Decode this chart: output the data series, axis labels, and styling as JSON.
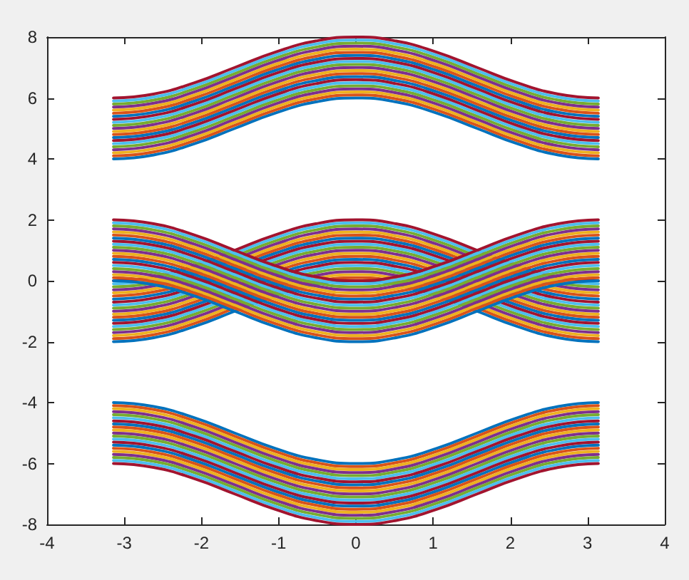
{
  "chart_data": {
    "type": "line",
    "grid": false,
    "xlim": [
      -4,
      4
    ],
    "xticks": [
      -4,
      -3,
      -2,
      -1,
      0,
      1,
      2,
      3,
      4
    ],
    "ylim": [
      -8,
      8
    ],
    "yticks": [
      -8,
      -6,
      -4,
      -2,
      0,
      2,
      4,
      6,
      8
    ],
    "x": [
      -3.14,
      -2.62,
      -2.09,
      -1.57,
      -1.05,
      -0.52,
      0,
      0.52,
      1.05,
      1.57,
      2.09,
      2.62,
      3.14
    ],
    "series": [
      {
        "color": "#0072bd",
        "values": [
          4,
          4.13,
          4.5,
          5,
          5.5,
          5.87,
          6,
          5.87,
          5.5,
          5,
          4.5,
          4.13,
          4
        ]
      },
      {
        "color": "#d95319",
        "values": [
          4.1,
          4.23,
          4.6,
          5.1,
          5.6,
          5.97,
          6.1,
          5.97,
          5.6,
          5.1,
          4.6,
          4.23,
          4.1
        ]
      },
      {
        "color": "#edb120",
        "values": [
          4.2,
          4.33,
          4.7,
          5.2,
          5.7,
          6.07,
          6.2,
          6.07,
          5.7,
          5.2,
          4.7,
          4.33,
          4.2
        ]
      },
      {
        "color": "#7e2f8e",
        "values": [
          4.3,
          4.43,
          4.8,
          5.3,
          5.8,
          6.17,
          6.3,
          6.17,
          5.8,
          5.3,
          4.8,
          4.43,
          4.3
        ]
      },
      {
        "color": "#77ac30",
        "values": [
          4.4,
          4.53,
          4.9,
          5.4,
          5.9,
          6.27,
          6.4,
          6.27,
          5.9,
          5.4,
          4.9,
          4.53,
          4.4
        ]
      },
      {
        "color": "#4dbeee",
        "values": [
          4.5,
          4.63,
          5,
          5.5,
          6,
          6.37,
          6.5,
          6.37,
          6,
          5.5,
          5,
          4.63,
          4.5
        ]
      },
      {
        "color": "#a2142f",
        "values": [
          4.6,
          4.73,
          5.1,
          5.6,
          6.1,
          6.47,
          6.6,
          6.47,
          6.1,
          5.6,
          5.1,
          4.73,
          4.6
        ]
      },
      {
        "color": "#0072bd",
        "values": [
          4.7,
          4.83,
          5.2,
          5.7,
          6.2,
          6.57,
          6.7,
          6.57,
          6.2,
          5.7,
          5.2,
          4.83,
          4.7
        ]
      },
      {
        "color": "#d95319",
        "values": [
          4.8,
          4.93,
          5.3,
          5.8,
          6.3,
          6.67,
          6.8,
          6.67,
          6.3,
          5.8,
          5.3,
          4.93,
          4.8
        ]
      },
      {
        "color": "#edb120",
        "values": [
          4.9,
          5.03,
          5.4,
          5.9,
          6.4,
          6.77,
          6.9,
          6.77,
          6.4,
          5.9,
          5.4,
          5.03,
          4.9
        ]
      },
      {
        "color": "#7e2f8e",
        "values": [
          5,
          5.13,
          5.5,
          6,
          6.5,
          6.87,
          7,
          6.87,
          6.5,
          6,
          5.5,
          5.13,
          5
        ]
      },
      {
        "color": "#77ac30",
        "values": [
          5.1,
          5.23,
          5.6,
          6.1,
          6.6,
          6.97,
          7.1,
          6.97,
          6.6,
          6.1,
          5.6,
          5.23,
          5.1
        ]
      },
      {
        "color": "#4dbeee",
        "values": [
          5.2,
          5.33,
          5.7,
          6.2,
          6.7,
          7.07,
          7.2,
          7.07,
          6.7,
          6.2,
          5.7,
          5.33,
          5.2
        ]
      },
      {
        "color": "#a2142f",
        "values": [
          5.3,
          5.43,
          5.8,
          6.3,
          6.8,
          7.17,
          7.3,
          7.17,
          6.8,
          6.3,
          5.8,
          5.43,
          5.3
        ]
      },
      {
        "color": "#0072bd",
        "values": [
          5.4,
          5.53,
          5.9,
          6.4,
          6.9,
          7.27,
          7.4,
          7.27,
          6.9,
          6.4,
          5.9,
          5.53,
          5.4
        ]
      },
      {
        "color": "#d95319",
        "values": [
          5.5,
          5.63,
          6,
          6.5,
          7,
          7.37,
          7.5,
          7.37,
          7,
          6.5,
          6,
          5.63,
          5.5
        ]
      },
      {
        "color": "#edb120",
        "values": [
          5.6,
          5.73,
          6.1,
          6.6,
          7.1,
          7.47,
          7.6,
          7.47,
          7.1,
          6.6,
          6.1,
          5.73,
          5.6
        ]
      },
      {
        "color": "#7e2f8e",
        "values": [
          5.7,
          5.83,
          6.2,
          6.7,
          7.2,
          7.57,
          7.7,
          7.57,
          7.2,
          6.7,
          6.2,
          5.83,
          5.7
        ]
      },
      {
        "color": "#77ac30",
        "values": [
          5.8,
          5.93,
          6.3,
          6.8,
          7.3,
          7.67,
          7.8,
          7.67,
          7.3,
          6.8,
          6.3,
          5.93,
          5.8
        ]
      },
      {
        "color": "#4dbeee",
        "values": [
          5.9,
          6.03,
          6.4,
          6.9,
          7.4,
          7.77,
          7.9,
          7.77,
          7.4,
          6.9,
          6.4,
          6.03,
          5.9
        ]
      },
      {
        "color": "#a2142f",
        "values": [
          6,
          6.13,
          6.5,
          7,
          7.5,
          7.87,
          8,
          7.87,
          7.5,
          7,
          6.5,
          6.13,
          6
        ]
      },
      {
        "color": "#0072bd",
        "values": [
          -2,
          -1.87,
          -1.5,
          -1,
          -0.5,
          -0.13,
          0,
          -0.13,
          -0.5,
          -1,
          -1.5,
          -1.87,
          -2
        ]
      },
      {
        "color": "#d95319",
        "values": [
          -1.9,
          -1.77,
          -1.4,
          -0.9,
          -0.4,
          -0.03,
          0.1,
          -0.03,
          -0.4,
          -0.9,
          -1.4,
          -1.77,
          -1.9
        ]
      },
      {
        "color": "#edb120",
        "values": [
          -1.8,
          -1.67,
          -1.3,
          -0.8,
          -0.3,
          0.07,
          0.2,
          0.07,
          -0.3,
          -0.8,
          -1.3,
          -1.67,
          -1.8
        ]
      },
      {
        "color": "#7e2f8e",
        "values": [
          -1.7,
          -1.57,
          -1.2,
          -0.7,
          -0.2,
          0.17,
          0.3,
          0.17,
          -0.2,
          -0.7,
          -1.2,
          -1.57,
          -1.7
        ]
      },
      {
        "color": "#77ac30",
        "values": [
          -1.6,
          -1.47,
          -1.1,
          -0.6,
          -0.1,
          0.27,
          0.4,
          0.27,
          -0.1,
          -0.6,
          -1.1,
          -1.47,
          -1.6
        ]
      },
      {
        "color": "#4dbeee",
        "values": [
          -1.5,
          -1.37,
          -1,
          -0.5,
          0,
          0.37,
          0.5,
          0.37,
          0,
          -0.5,
          -1,
          -1.37,
          -1.5
        ]
      },
      {
        "color": "#a2142f",
        "values": [
          -1.4,
          -1.27,
          -0.9,
          -0.4,
          0.1,
          0.47,
          0.6,
          0.47,
          0.1,
          -0.4,
          -0.9,
          -1.27,
          -1.4
        ]
      },
      {
        "color": "#0072bd",
        "values": [
          -1.3,
          -1.17,
          -0.8,
          -0.3,
          0.2,
          0.57,
          0.7,
          0.57,
          0.2,
          -0.3,
          -0.8,
          -1.17,
          -1.3
        ]
      },
      {
        "color": "#d95319",
        "values": [
          -1.2,
          -1.07,
          -0.7,
          -0.2,
          0.3,
          0.67,
          0.8,
          0.67,
          0.3,
          -0.2,
          -0.7,
          -1.07,
          -1.2
        ]
      },
      {
        "color": "#edb120",
        "values": [
          -1.1,
          -0.97,
          -0.6,
          -0.1,
          0.4,
          0.77,
          0.9,
          0.77,
          0.4,
          -0.1,
          -0.6,
          -0.97,
          -1.1
        ]
      },
      {
        "color": "#7e2f8e",
        "values": [
          -1,
          -0.87,
          -0.5,
          0,
          0.5,
          0.87,
          1,
          0.87,
          0.5,
          0,
          -0.5,
          -0.87,
          -1
        ]
      },
      {
        "color": "#77ac30",
        "values": [
          -0.9,
          -0.77,
          -0.4,
          0.1,
          0.6,
          0.97,
          1.1,
          0.97,
          0.6,
          0.1,
          -0.4,
          -0.77,
          -0.9
        ]
      },
      {
        "color": "#4dbeee",
        "values": [
          -0.8,
          -0.67,
          -0.3,
          0.2,
          0.7,
          1.07,
          1.2,
          1.07,
          0.7,
          0.2,
          -0.3,
          -0.67,
          -0.8
        ]
      },
      {
        "color": "#a2142f",
        "values": [
          -0.7,
          -0.57,
          -0.2,
          0.3,
          0.8,
          1.17,
          1.3,
          1.17,
          0.8,
          0.3,
          -0.2,
          -0.57,
          -0.7
        ]
      },
      {
        "color": "#0072bd",
        "values": [
          -0.6,
          -0.47,
          -0.1,
          0.4,
          0.9,
          1.27,
          1.4,
          1.27,
          0.9,
          0.4,
          -0.1,
          -0.47,
          -0.6
        ]
      },
      {
        "color": "#d95319",
        "values": [
          -0.5,
          -0.37,
          0,
          0.5,
          1,
          1.37,
          1.5,
          1.37,
          1,
          0.5,
          0,
          -0.37,
          -0.5
        ]
      },
      {
        "color": "#edb120",
        "values": [
          -0.4,
          -0.27,
          0.1,
          0.6,
          1.1,
          1.47,
          1.6,
          1.47,
          1.1,
          0.6,
          0.1,
          -0.27,
          -0.4
        ]
      },
      {
        "color": "#7e2f8e",
        "values": [
          -0.3,
          -0.17,
          0.2,
          0.7,
          1.2,
          1.57,
          1.7,
          1.57,
          1.2,
          0.7,
          0.2,
          -0.17,
          -0.3
        ]
      },
      {
        "color": "#77ac30",
        "values": [
          -0.2,
          -0.07,
          0.3,
          0.8,
          1.3,
          1.67,
          1.8,
          1.67,
          1.3,
          0.8,
          0.3,
          -0.07,
          -0.2
        ]
      },
      {
        "color": "#4dbeee",
        "values": [
          -0.1,
          0.03,
          0.4,
          0.9,
          1.4,
          1.77,
          1.9,
          1.77,
          1.4,
          0.9,
          0.4,
          0.03,
          -0.1
        ]
      },
      {
        "color": "#a2142f",
        "values": [
          0,
          0.13,
          0.5,
          1,
          1.5,
          1.87,
          2,
          1.87,
          1.5,
          1,
          0.5,
          0.13,
          0
        ]
      },
      {
        "color": "#0072bd",
        "values": [
          0,
          -0.13,
          -0.5,
          -1,
          -1.5,
          -1.87,
          -2,
          -1.87,
          -1.5,
          -1,
          -0.5,
          -0.13,
          0
        ]
      },
      {
        "color": "#d95319",
        "values": [
          0.1,
          -0.03,
          -0.4,
          -0.9,
          -1.4,
          -1.77,
          -1.9,
          -1.77,
          -1.4,
          -0.9,
          -0.4,
          -0.03,
          0.1
        ]
      },
      {
        "color": "#edb120",
        "values": [
          0.2,
          0.07,
          -0.3,
          -0.8,
          -1.3,
          -1.67,
          -1.8,
          -1.67,
          -1.3,
          -0.8,
          -0.3,
          0.07,
          0.2
        ]
      },
      {
        "color": "#7e2f8e",
        "values": [
          0.3,
          0.17,
          -0.2,
          -0.7,
          -1.2,
          -1.57,
          -1.7,
          -1.57,
          -1.2,
          -0.7,
          -0.2,
          0.17,
          0.3
        ]
      },
      {
        "color": "#77ac30",
        "values": [
          0.4,
          0.27,
          -0.1,
          -0.6,
          -1.1,
          -1.47,
          -1.6,
          -1.47,
          -1.1,
          -0.6,
          -0.1,
          0.27,
          0.4
        ]
      },
      {
        "color": "#4dbeee",
        "values": [
          0.5,
          0.37,
          0,
          -0.5,
          -1,
          -1.37,
          -1.5,
          -1.37,
          -1,
          -0.5,
          0,
          0.37,
          0.5
        ]
      },
      {
        "color": "#a2142f",
        "values": [
          0.6,
          0.47,
          0.1,
          -0.4,
          -0.9,
          -1.27,
          -1.4,
          -1.27,
          -0.9,
          -0.4,
          0.1,
          0.47,
          0.6
        ]
      },
      {
        "color": "#0072bd",
        "values": [
          0.7,
          0.57,
          0.2,
          -0.3,
          -0.8,
          -1.17,
          -1.3,
          -1.17,
          -0.8,
          -0.3,
          0.2,
          0.57,
          0.7
        ]
      },
      {
        "color": "#d95319",
        "values": [
          0.8,
          0.67,
          0.3,
          -0.2,
          -0.7,
          -1.07,
          -1.2,
          -1.07,
          -0.7,
          -0.2,
          0.3,
          0.67,
          0.8
        ]
      },
      {
        "color": "#edb120",
        "values": [
          0.9,
          0.77,
          0.4,
          -0.1,
          -0.6,
          -0.97,
          -1.1,
          -0.97,
          -0.6,
          -0.1,
          0.4,
          0.77,
          0.9
        ]
      },
      {
        "color": "#7e2f8e",
        "values": [
          1,
          0.87,
          0.5,
          0,
          -0.5,
          -0.87,
          -1,
          -0.87,
          -0.5,
          0,
          0.5,
          0.87,
          1
        ]
      },
      {
        "color": "#77ac30",
        "values": [
          1.1,
          0.97,
          0.6,
          0.1,
          -0.4,
          -0.77,
          -0.9,
          -0.77,
          -0.4,
          0.1,
          0.6,
          0.97,
          1.1
        ]
      },
      {
        "color": "#4dbeee",
        "values": [
          1.2,
          1.07,
          0.7,
          0.2,
          -0.3,
          -0.67,
          -0.8,
          -0.67,
          -0.3,
          0.2,
          0.7,
          1.07,
          1.2
        ]
      },
      {
        "color": "#a2142f",
        "values": [
          1.3,
          1.17,
          0.8,
          0.3,
          -0.2,
          -0.57,
          -0.7,
          -0.57,
          -0.2,
          0.3,
          0.8,
          1.17,
          1.3
        ]
      },
      {
        "color": "#0072bd",
        "values": [
          1.4,
          1.27,
          0.9,
          0.4,
          -0.1,
          -0.47,
          -0.6,
          -0.47,
          -0.1,
          0.4,
          0.9,
          1.27,
          1.4
        ]
      },
      {
        "color": "#d95319",
        "values": [
          1.5,
          1.37,
          1,
          0.5,
          0,
          -0.37,
          -0.5,
          -0.37,
          0,
          0.5,
          1,
          1.37,
          1.5
        ]
      },
      {
        "color": "#edb120",
        "values": [
          1.6,
          1.47,
          1.1,
          0.6,
          0.1,
          -0.27,
          -0.4,
          -0.27,
          0.1,
          0.6,
          1.1,
          1.47,
          1.6
        ]
      },
      {
        "color": "#7e2f8e",
        "values": [
          1.7,
          1.57,
          1.2,
          0.7,
          0.2,
          -0.17,
          -0.3,
          -0.17,
          0.2,
          0.7,
          1.2,
          1.57,
          1.7
        ]
      },
      {
        "color": "#77ac30",
        "values": [
          1.8,
          1.67,
          1.3,
          0.8,
          0.3,
          -0.07,
          -0.2,
          -0.07,
          0.3,
          0.8,
          1.3,
          1.67,
          1.8
        ]
      },
      {
        "color": "#4dbeee",
        "values": [
          1.9,
          1.77,
          1.4,
          0.9,
          0.4,
          0.03,
          -0.1,
          0.03,
          0.4,
          0.9,
          1.4,
          1.77,
          1.9
        ]
      },
      {
        "color": "#a2142f",
        "values": [
          2,
          1.87,
          1.5,
          1,
          0.5,
          0.13,
          0,
          0.13,
          0.5,
          1,
          1.5,
          1.87,
          2
        ]
      },
      {
        "color": "#0072bd",
        "values": [
          -4,
          -4.13,
          -4.5,
          -5,
          -5.5,
          -5.87,
          -6,
          -5.87,
          -5.5,
          -5,
          -4.5,
          -4.13,
          -4
        ]
      },
      {
        "color": "#d95319",
        "values": [
          -4.1,
          -4.23,
          -4.6,
          -5.1,
          -5.6,
          -5.97,
          -6.1,
          -5.97,
          -5.6,
          -5.1,
          -4.6,
          -4.23,
          -4.1
        ]
      },
      {
        "color": "#edb120",
        "values": [
          -4.2,
          -4.33,
          -4.7,
          -5.2,
          -5.7,
          -6.07,
          -6.2,
          -6.07,
          -5.7,
          -5.2,
          -4.7,
          -4.33,
          -4.2
        ]
      },
      {
        "color": "#7e2f8e",
        "values": [
          -4.3,
          -4.43,
          -4.8,
          -5.3,
          -5.8,
          -6.17,
          -6.3,
          -6.17,
          -5.8,
          -5.3,
          -4.8,
          -4.43,
          -4.3
        ]
      },
      {
        "color": "#77ac30",
        "values": [
          -4.4,
          -4.53,
          -4.9,
          -5.4,
          -5.9,
          -6.27,
          -6.4,
          -6.27,
          -5.9,
          -5.4,
          -4.9,
          -4.53,
          -4.4
        ]
      },
      {
        "color": "#4dbeee",
        "values": [
          -4.5,
          -4.63,
          -5,
          -5.5,
          -6,
          -6.37,
          -6.5,
          -6.37,
          -6,
          -5.5,
          -5,
          -4.63,
          -4.5
        ]
      },
      {
        "color": "#a2142f",
        "values": [
          -4.6,
          -4.73,
          -5.1,
          -5.6,
          -6.1,
          -6.47,
          -6.6,
          -6.47,
          -6.1,
          -5.6,
          -5.1,
          -4.73,
          -4.6
        ]
      },
      {
        "color": "#0072bd",
        "values": [
          -4.7,
          -4.83,
          -5.2,
          -5.7,
          -6.2,
          -6.57,
          -6.7,
          -6.57,
          -6.2,
          -5.7,
          -5.2,
          -4.83,
          -4.7
        ]
      },
      {
        "color": "#d95319",
        "values": [
          -4.8,
          -4.93,
          -5.3,
          -5.8,
          -6.3,
          -6.67,
          -6.8,
          -6.67,
          -6.3,
          -5.8,
          -5.3,
          -4.93,
          -4.8
        ]
      },
      {
        "color": "#edb120",
        "values": [
          -4.9,
          -5.03,
          -5.4,
          -5.9,
          -6.4,
          -6.77,
          -6.9,
          -6.77,
          -6.4,
          -5.9,
          -5.4,
          -5.03,
          -4.9
        ]
      },
      {
        "color": "#7e2f8e",
        "values": [
          -5,
          -5.13,
          -5.5,
          -6,
          -6.5,
          -6.87,
          -7,
          -6.87,
          -6.5,
          -6,
          -5.5,
          -5.13,
          -5
        ]
      },
      {
        "color": "#77ac30",
        "values": [
          -5.1,
          -5.23,
          -5.6,
          -6.1,
          -6.6,
          -6.97,
          -7.1,
          -6.97,
          -6.6,
          -6.1,
          -5.6,
          -5.23,
          -5.1
        ]
      },
      {
        "color": "#4dbeee",
        "values": [
          -5.2,
          -5.33,
          -5.7,
          -6.2,
          -6.7,
          -7.07,
          -7.2,
          -7.07,
          -6.7,
          -6.2,
          -5.7,
          -5.33,
          -5.2
        ]
      },
      {
        "color": "#a2142f",
        "values": [
          -5.3,
          -5.43,
          -5.8,
          -6.3,
          -6.8,
          -7.17,
          -7.3,
          -7.17,
          -6.8,
          -6.3,
          -5.8,
          -5.43,
          -5.3
        ]
      },
      {
        "color": "#0072bd",
        "values": [
          -5.4,
          -5.53,
          -5.9,
          -6.4,
          -6.9,
          -7.27,
          -7.4,
          -7.27,
          -6.9,
          -6.4,
          -5.9,
          -5.53,
          -5.4
        ]
      },
      {
        "color": "#d95319",
        "values": [
          -5.5,
          -5.63,
          -6,
          -6.5,
          -7,
          -7.37,
          -7.5,
          -7.37,
          -7,
          -6.5,
          -6,
          -5.63,
          -5.5
        ]
      },
      {
        "color": "#edb120",
        "values": [
          -5.6,
          -5.73,
          -6.1,
          -6.6,
          -7.1,
          -7.47,
          -7.6,
          -7.47,
          -7.1,
          -6.6,
          -6.1,
          -5.73,
          -5.6
        ]
      },
      {
        "color": "#7e2f8e",
        "values": [
          -5.7,
          -5.83,
          -6.2,
          -6.7,
          -7.2,
          -7.57,
          -7.7,
          -7.57,
          -7.2,
          -6.7,
          -6.2,
          -5.83,
          -5.7
        ]
      },
      {
        "color": "#77ac30",
        "values": [
          -5.8,
          -5.93,
          -6.3,
          -6.8,
          -7.3,
          -7.67,
          -7.8,
          -7.67,
          -7.3,
          -6.8,
          -6.3,
          -5.93,
          -5.8
        ]
      },
      {
        "color": "#4dbeee",
        "values": [
          -5.9,
          -6.03,
          -6.4,
          -6.9,
          -7.4,
          -7.77,
          -7.9,
          -7.77,
          -7.4,
          -6.9,
          -6.4,
          -6.03,
          -5.9
        ]
      },
      {
        "color": "#a2142f",
        "values": [
          -6,
          -6.13,
          -6.5,
          -7,
          -7.5,
          -7.87,
          -8,
          -7.87,
          -7.5,
          -7,
          -6.5,
          -6.13,
          -6
        ]
      }
    ]
  }
}
